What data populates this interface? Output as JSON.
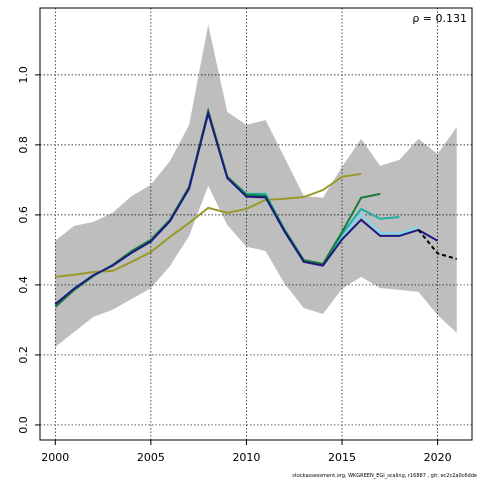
{
  "chart_data": {
    "type": "line",
    "annotation": "ρ = 0.131",
    "footer": "stockassessment.org, WKGREEN_EGI_scaling, r16887 , git: ec2c2a0c6dde",
    "x": [
      2000,
      2001,
      2002,
      2003,
      2004,
      2005,
      2006,
      2007,
      2008,
      2009,
      2010,
      2011,
      2012,
      2013,
      2014,
      2015,
      2016,
      2017,
      2018,
      2019,
      2020,
      2021
    ],
    "xlim": [
      1999.2,
      2021.8
    ],
    "ylim": [
      -0.043,
      1.191
    ],
    "xticks": [
      2000,
      2005,
      2010,
      2015,
      2020
    ],
    "yticks": [
      {
        "value": 0,
        "label": "0.0"
      },
      {
        "value": 0.2,
        "label": "0.2"
      },
      {
        "value": 0.4,
        "label": "0.4"
      },
      {
        "value": 0.6,
        "label": "0.6"
      },
      {
        "value": 0.8,
        "label": "0.8"
      },
      {
        "value": 1,
        "label": "1.0"
      }
    ],
    "grid": true,
    "band": {
      "color": "#bebebe",
      "upper": [
        0.526,
        0.569,
        0.58,
        0.606,
        0.654,
        0.686,
        0.754,
        0.857,
        1.143,
        0.894,
        0.857,
        0.871,
        0.763,
        0.654,
        0.649,
        0.737,
        0.817,
        0.74,
        0.757,
        0.817,
        0.774,
        0.851
      ],
      "lower": [
        0.223,
        0.266,
        0.309,
        0.329,
        0.36,
        0.391,
        0.454,
        0.54,
        0.683,
        0.571,
        0.509,
        0.497,
        0.403,
        0.334,
        0.317,
        0.389,
        0.423,
        0.391,
        0.386,
        0.38,
        0.314,
        0.263
      ]
    },
    "series": [
      {
        "color": "#9a9a2a",
        "values": [
          0.423,
          0.429,
          0.437,
          0.44,
          0.466,
          0.494,
          0.537,
          0.577,
          0.62,
          0.606,
          0.617,
          0.643,
          0.646,
          0.651,
          0.671,
          0.709,
          0.717,
          null,
          null,
          null,
          null,
          null
        ]
      },
      {
        "color": "#7fd8f0",
        "values": [
          0.343,
          0.388,
          0.427,
          0.456,
          0.494,
          0.526,
          0.584,
          0.677,
          0.893,
          0.707,
          0.66,
          0.66,
          0.557,
          0.468,
          0.458,
          0.54,
          0.603,
          0.549,
          0.546,
          0.566,
          null,
          null
        ]
      },
      {
        "color": "#20b0a0",
        "values": [
          0.34,
          0.387,
          0.426,
          0.457,
          0.496,
          0.528,
          0.585,
          0.679,
          0.895,
          0.708,
          0.66,
          0.66,
          0.557,
          0.469,
          0.459,
          0.545,
          0.617,
          0.589,
          0.594,
          null,
          null,
          null
        ]
      },
      {
        "color": "#1a7a3a",
        "values": [
          0.337,
          0.386,
          0.426,
          0.457,
          0.497,
          0.529,
          0.586,
          0.68,
          0.897,
          0.709,
          0.657,
          0.654,
          0.557,
          0.471,
          0.46,
          0.551,
          0.649,
          0.66,
          null,
          null,
          null,
          null
        ]
      },
      {
        "color": "#1a1a80",
        "values": [
          0.345,
          0.39,
          0.428,
          0.455,
          0.492,
          0.524,
          0.582,
          0.675,
          0.89,
          0.705,
          0.652,
          0.65,
          0.552,
          0.466,
          0.455,
          0.53,
          0.586,
          0.54,
          0.54,
          0.557,
          0.526,
          null
        ]
      },
      {
        "color": "#000000",
        "dashed": true,
        "values": [
          null,
          null,
          null,
          null,
          null,
          null,
          null,
          null,
          null,
          null,
          null,
          null,
          null,
          null,
          null,
          null,
          null,
          null,
          null,
          0.557,
          0.49,
          0.474
        ]
      }
    ]
  }
}
